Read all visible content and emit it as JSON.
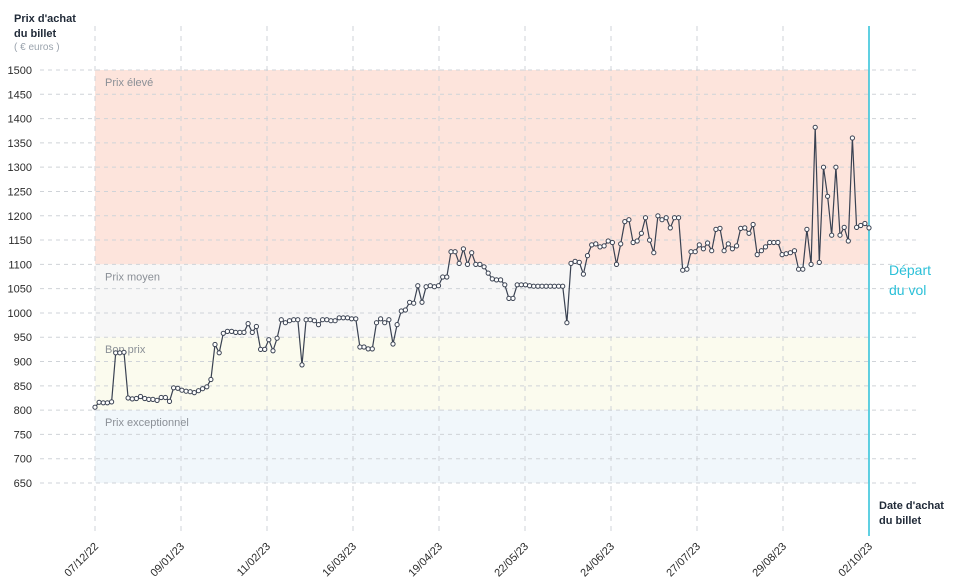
{
  "chart_data": {
    "type": "line",
    "ylabel_line1": "Prix d'achat",
    "ylabel_line2": "du billet",
    "yunit": "( € euros )",
    "xlabel_line1": "Date d'achat",
    "xlabel_line2": "du billet",
    "departure_line1": "Départ",
    "departure_line2": "du vol",
    "ylim": [
      650,
      1500
    ],
    "yticks": [
      650,
      700,
      750,
      800,
      850,
      900,
      950,
      1000,
      1050,
      1100,
      1150,
      1200,
      1250,
      1300,
      1350,
      1400,
      1450,
      1500
    ],
    "xticks": [
      "07/12/22",
      "09/01/23",
      "11/02/23",
      "16/03/23",
      "19/04/23",
      "22/05/23",
      "24/06/23",
      "27/07/23",
      "29/08/23",
      "02/10/23"
    ],
    "zones": [
      {
        "label": "Prix élevé",
        "from": 1100,
        "to": 1500,
        "color": "#fde4dc"
      },
      {
        "label": "Prix moyen",
        "from": 950,
        "to": 1100,
        "color": "#f7f7f7"
      },
      {
        "label": "Bon prix",
        "from": 800,
        "to": 950,
        "color": "#fbfbee"
      },
      {
        "label": "Prix exceptionnel",
        "from": 650,
        "to": 800,
        "color": "#f1f7fb"
      }
    ],
    "series": [
      {
        "values": [
          806,
          816,
          815,
          815,
          817,
          918,
          918,
          919,
          825,
          823,
          824,
          828,
          824,
          822,
          822,
          820,
          826,
          826,
          818,
          846,
          845,
          841,
          839,
          838,
          836,
          840,
          844,
          848,
          863,
          935,
          918,
          958,
          962,
          962,
          960,
          960,
          960,
          978,
          960,
          972,
          925,
          925,
          945,
          922,
          948,
          986,
          980,
          984,
          986,
          986,
          893,
          986,
          986,
          984,
          976,
          986,
          986,
          984,
          984,
          990,
          990,
          990,
          988,
          988,
          930,
          930,
          926,
          926,
          980,
          988,
          980,
          986,
          936,
          976,
          1004,
          1006,
          1022,
          1020,
          1056,
          1022,
          1054,
          1056,
          1054,
          1056,
          1074,
          1074,
          1126,
          1126,
          1102,
          1132,
          1100,
          1124,
          1100,
          1100,
          1095,
          1082,
          1070,
          1068,
          1068,
          1058,
          1030,
          1030,
          1058,
          1058,
          1058,
          1056,
          1055,
          1055,
          1055,
          1055,
          1055,
          1055,
          1055,
          1055,
          980,
          1102,
          1106,
          1104,
          1080,
          1118,
          1140,
          1142,
          1136,
          1138,
          1148,
          1145,
          1100,
          1142,
          1188,
          1192,
          1145,
          1148,
          1164,
          1196,
          1150,
          1124,
          1200,
          1192,
          1196,
          1175,
          1196,
          1196,
          1088,
          1090,
          1126,
          1126,
          1140,
          1132,
          1144,
          1128,
          1172,
          1174,
          1128,
          1142,
          1132,
          1138,
          1174,
          1175,
          1164,
          1182,
          1120,
          1128,
          1136,
          1145,
          1145,
          1145,
          1120,
          1122,
          1124,
          1128,
          1090,
          1090,
          1172,
          1100,
          1382,
          1104,
          1300,
          1240,
          1160,
          1300,
          1160,
          1176,
          1148,
          1360,
          1176,
          1180,
          1184,
          1175
        ]
      }
    ]
  }
}
